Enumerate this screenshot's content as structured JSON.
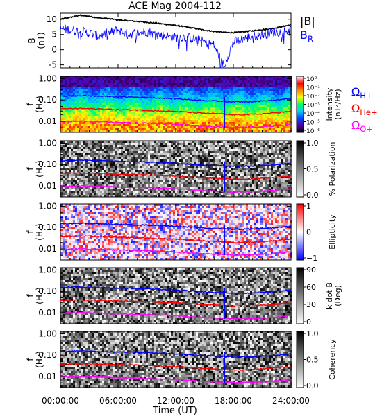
{
  "title": "ACE Mag 2004-112",
  "xlabel": "Time (UT)",
  "chart_data": [
    {
      "id": "B",
      "type": "line",
      "ylabel": "B",
      "yunit": "(nT)",
      "ylim": [
        -6,
        12
      ],
      "yticks": [
        10,
        5,
        0,
        -5
      ],
      "legend": [
        {
          "label": "|B|",
          "color": "#000000",
          "base": "|B|",
          "sub": ""
        },
        {
          "label": "BR",
          "color": "#0000ff",
          "base": "B",
          "sub": "R"
        }
      ],
      "series": [
        {
          "name": "|B|",
          "color": "#000000",
          "x": [
            0,
            1,
            2,
            3,
            4,
            5,
            6,
            7,
            8,
            9,
            10,
            11,
            12,
            13,
            14,
            15,
            16,
            17,
            18,
            19,
            20,
            21,
            22,
            23,
            24
          ],
          "y": [
            10.0,
            10.6,
            11.3,
            11.0,
            10.4,
            10.2,
            9.8,
            9.5,
            9.3,
            9.0,
            8.7,
            8.3,
            8.0,
            7.5,
            7.0,
            6.4,
            6.0,
            5.7,
            5.6,
            5.9,
            6.2,
            6.6,
            6.9,
            7.5,
            8.2
          ]
        },
        {
          "name": "BR",
          "color": "#0000ff",
          "x": [
            0,
            1,
            2,
            3,
            4,
            5,
            6,
            7,
            8,
            9,
            10,
            11,
            12,
            13,
            14,
            15,
            16,
            17,
            18,
            19,
            20,
            21,
            22,
            23,
            24
          ],
          "y": [
            7.0,
            6.5,
            6.0,
            5.5,
            4.5,
            5.5,
            6.5,
            5.0,
            5.5,
            6.0,
            5.0,
            4.5,
            4.0,
            4.2,
            3.5,
            2.5,
            1.5,
            -5.4,
            2.5,
            3.5,
            4.5,
            5.0,
            5.5,
            6.0,
            6.5
          ]
        }
      ]
    },
    {
      "id": "intensity",
      "type": "heatmap",
      "ylabel": "f",
      "yunit": "(Hz)",
      "yscale": "log",
      "ylim": [
        0.003,
        1.3
      ],
      "yticks": [
        "1.00",
        "0.10",
        "0.01"
      ],
      "colorbar": {
        "label": "Intensity",
        "unit": "(nT²/Hz)",
        "ticks": [
          "10⁰",
          "10⁻¹",
          "10⁻²",
          "10⁻³",
          "10⁻⁴",
          "10⁻⁵",
          "10⁻⁶"
        ],
        "colors": [
          "#ffffff",
          "#ff0000",
          "#ff8800",
          "#ffff00",
          "#00ff66",
          "#00ccff",
          "#0044ff",
          "#5500aa",
          "#000000"
        ]
      },
      "legend": [
        {
          "label": "ΩH+",
          "color": "#0000ff",
          "base": "Ω",
          "sub": "H+"
        },
        {
          "label": "ΩHe+",
          "color": "#ff0000",
          "base": "Ω",
          "sub": "He+"
        },
        {
          "label": "ΩO+",
          "color": "#ff00ff",
          "base": "Ω",
          "sub": "O+"
        }
      ]
    },
    {
      "id": "polarization",
      "type": "heatmap",
      "ylabel": "f",
      "yunit": "(Hz)",
      "yscale": "log",
      "colorbar": {
        "label": "% Polarization",
        "unit": "",
        "ticks": [
          "1.0",
          "0.5",
          "0.0"
        ],
        "colors": [
          "#000000",
          "#808080",
          "#ffffff"
        ]
      }
    },
    {
      "id": "ellipticity",
      "type": "heatmap",
      "ylabel": "f",
      "yunit": "(Hz)",
      "yscale": "log",
      "colorbar": {
        "label": "Ellipticity",
        "unit": "",
        "ticks": [
          "1",
          "0",
          "−1"
        ],
        "colors": [
          "#ff0000",
          "#ffffff",
          "#0000ff"
        ]
      }
    },
    {
      "id": "kdotb",
      "type": "heatmap",
      "ylabel": "f",
      "yunit": "(Hz)",
      "yscale": "log",
      "colorbar": {
        "label": "k dot B",
        "unit": "(Deg)",
        "ticks": [
          "90",
          "60",
          "30",
          "0"
        ],
        "colors": [
          "#000000",
          "#808080",
          "#ffffff"
        ]
      }
    },
    {
      "id": "coherency",
      "type": "heatmap",
      "ylabel": "f",
      "yunit": "(Hz)",
      "yscale": "log",
      "colorbar": {
        "label": "Coherency",
        "unit": "",
        "ticks": [
          "1.0",
          "0.5",
          "0.0"
        ],
        "colors": [
          "#000000",
          "#808080",
          "#ffffff"
        ]
      }
    }
  ],
  "gyrofrequencies": {
    "x": [
      0,
      2,
      4,
      6,
      8,
      10,
      12,
      14,
      16,
      18,
      20,
      22,
      24
    ],
    "H": [
      0.15,
      0.16,
      0.15,
      0.14,
      0.135,
      0.125,
      0.115,
      0.1,
      0.09,
      0.082,
      0.085,
      0.095,
      0.115
    ],
    "He": [
      0.038,
      0.04,
      0.038,
      0.035,
      0.034,
      0.031,
      0.029,
      0.025,
      0.023,
      0.02,
      0.021,
      0.024,
      0.029
    ],
    "O": [
      0.0094,
      0.01,
      0.0094,
      0.0088,
      0.0084,
      0.0078,
      0.0072,
      0.0062,
      0.0056,
      0.0051,
      0.0053,
      0.0059,
      0.0072
    ]
  },
  "xaxis": {
    "min": "00:00:00",
    "max": "24:00:00",
    "ticks": [
      "00:00:00",
      "06:00:00",
      "12:00:00",
      "18:00:00",
      "24:00:00"
    ]
  }
}
